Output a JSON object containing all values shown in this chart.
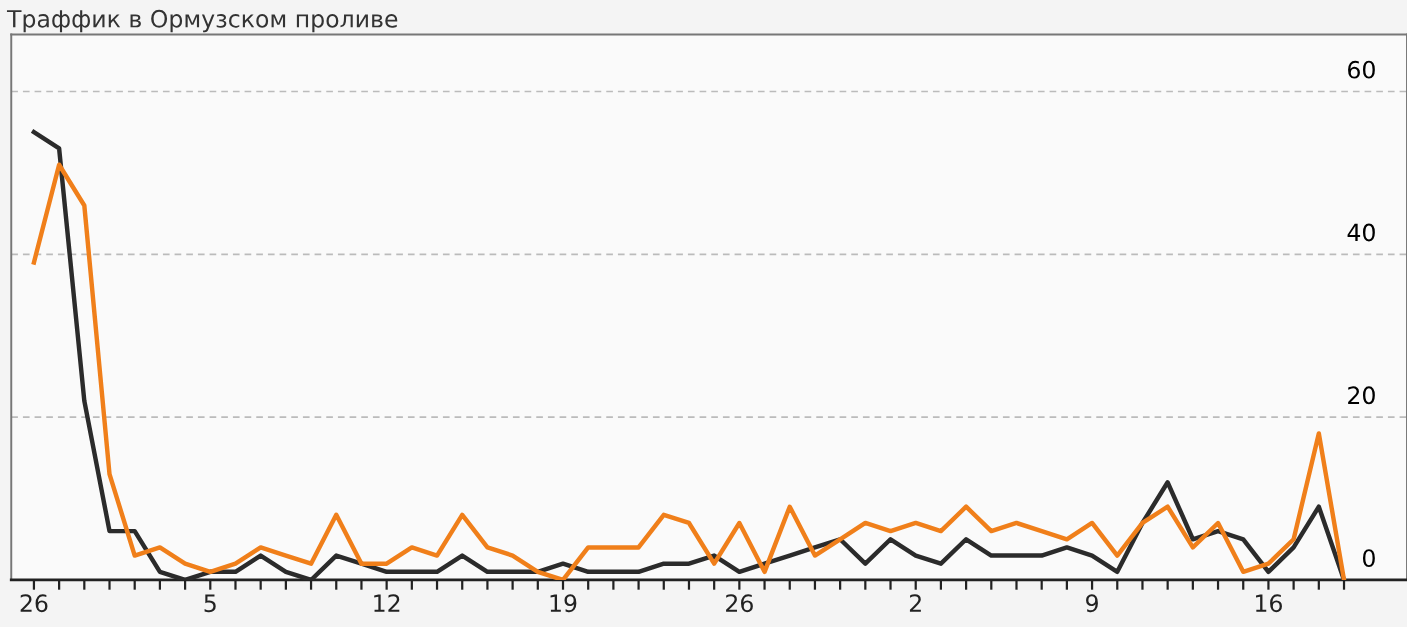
{
  "chart_data": {
    "type": "line",
    "title": "Траффик в Ормузском проливе",
    "categories": [
      "26",
      null,
      null,
      null,
      null,
      null,
      null,
      "5",
      null,
      null,
      null,
      null,
      null,
      null,
      "12",
      null,
      null,
      null,
      null,
      null,
      null,
      "19",
      null,
      null,
      null,
      null,
      null,
      null,
      "26",
      null,
      null,
      null,
      null,
      null,
      null,
      "2",
      null,
      null,
      null,
      null,
      null,
      null,
      "9",
      null,
      null,
      null,
      null,
      null,
      null,
      "16",
      null,
      null,
      null
    ],
    "series": [
      {
        "color": "#2b2b2b",
        "values": [
          55,
          53,
          22,
          6,
          6,
          1,
          0,
          1,
          1,
          3,
          1,
          0,
          3,
          2,
          1,
          1,
          1,
          3,
          1,
          1,
          1,
          2,
          1,
          1,
          1,
          2,
          2,
          3,
          1,
          2,
          3,
          4,
          5,
          2,
          5,
          3,
          2,
          5,
          3,
          3,
          3,
          4,
          3,
          1,
          7,
          12,
          5,
          6,
          5,
          1,
          4,
          9,
          0
        ]
      },
      {
        "color": "#f07f1a",
        "values": [
          39,
          51,
          46,
          13,
          3,
          4,
          2,
          1,
          2,
          4,
          3,
          2,
          8,
          2,
          2,
          4,
          3,
          8,
          4,
          3,
          1,
          0,
          4,
          4,
          4,
          8,
          7,
          2,
          7,
          1,
          9,
          3,
          5,
          7,
          6,
          7,
          6,
          9,
          6,
          7,
          6,
          5,
          7,
          3,
          7,
          9,
          4,
          7,
          1,
          2,
          5,
          18,
          0
        ]
      }
    ],
    "ylim": [
      0,
      67
    ],
    "yticks": [
      0,
      20,
      40,
      60
    ],
    "grid": "y",
    "marker": "none",
    "line_style": "solid",
    "legend": false
  }
}
